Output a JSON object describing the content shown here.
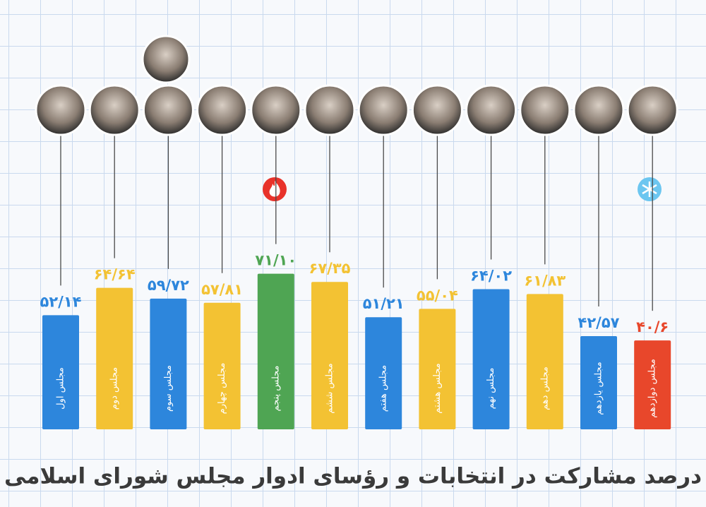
{
  "chart_data": {
    "type": "bar",
    "title": "درصد مشارکت در انتخابات و رؤسای ادوار مجلس شورای اسلامی",
    "categories": [
      "مجلس اول",
      "مجلس دوم",
      "مجلس سوم",
      "مجلس چهارم",
      "مجلس پنجم",
      "مجلس ششم",
      "مجلس هفتم",
      "مجلس هشتم",
      "مجلس نهم",
      "مجلس دهم",
      "مجلس یازدهم",
      "مجلس دوازدهم"
    ],
    "values": [
      52.14,
      64.64,
      59.72,
      57.81,
      71.1,
      67.35,
      51.21,
      55.04,
      64.02,
      61.83,
      42.57,
      40.6
    ],
    "value_labels": [
      "۵۲/۱۴",
      "۶۴/۶۴",
      "۵۹/۷۲",
      "۵۷/۸۱",
      "۷۱/۱۰",
      "۶۷/۳۵",
      "۵۱/۲۱",
      "۵۵/۰۴",
      "۶۴/۰۲",
      "۶۱/۸۳",
      "۴۲/۵۷",
      "۴۰/۶"
    ],
    "colors": [
      "#2d86dc",
      "#f3c233",
      "#2d86dc",
      "#f3c233",
      "#4fa553",
      "#f3c233",
      "#2d86dc",
      "#f3c233",
      "#2d86dc",
      "#f3c233",
      "#2d86dc",
      "#e8472b"
    ]
  }
}
